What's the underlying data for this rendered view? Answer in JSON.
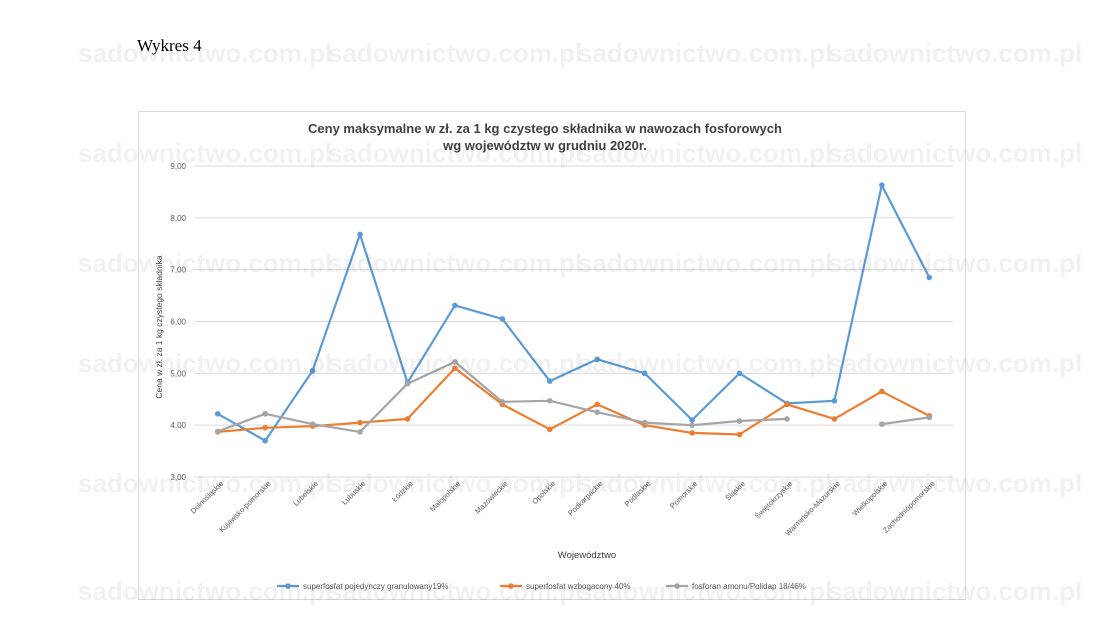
{
  "page": {
    "heading": "Wykres 4",
    "watermark": "sadownictwo.com.pl"
  },
  "chart_data": {
    "type": "line",
    "title_lines": [
      "Ceny maksymalne w zł. za 1 kg czystego składnika w nawozach fosforowych",
      "wg województw w grudniu 2020r."
    ],
    "xlabel": "Województwo",
    "ylabel": "Cena w zł. za 1 kg czystego składnika",
    "ylim": [
      3,
      9
    ],
    "yticks": [
      "3,00",
      "4,00",
      "5,00",
      "6,00",
      "7,00",
      "8,00",
      "9,00"
    ],
    "grid": true,
    "legend_position": "bottom",
    "categories": [
      "Dolnośląskie",
      "Kujawsko-pomorskie",
      "Lubelskie",
      "Lubuskie",
      "Łódzkie",
      "Małopolskie",
      "Mazowieckie",
      "Opolskie",
      "Podkarpackie",
      "Podlaskie",
      "Pomorskie",
      "Śląskie",
      "Świętokrzyskie",
      "Warmińsko-Mazurskie",
      "Wielkopolskie",
      "Zachodniopomorskie"
    ],
    "series": [
      {
        "name": "superfosfat pojedynczy granulowany19%",
        "color": "#5b9bd5",
        "values": [
          4.22,
          3.7,
          5.05,
          7.68,
          4.82,
          6.31,
          6.05,
          4.85,
          5.27,
          5.0,
          4.1,
          5.0,
          4.42,
          4.47,
          8.63,
          6.85
        ]
      },
      {
        "name": "superfosfat wzbogacony 40%",
        "color": "#ed7d31",
        "values": [
          3.87,
          3.95,
          3.98,
          4.05,
          4.12,
          5.1,
          4.4,
          3.92,
          4.4,
          4.0,
          3.85,
          3.82,
          4.4,
          4.12,
          4.65,
          4.18
        ]
      },
      {
        "name": "fosforan amonu/Polidap 18/46%",
        "color": "#a5a5a5",
        "values": [
          3.88,
          4.22,
          4.02,
          3.87,
          4.8,
          5.22,
          4.45,
          4.47,
          4.25,
          4.05,
          4.0,
          4.08,
          4.12,
          null,
          4.02,
          4.15
        ]
      }
    ]
  }
}
